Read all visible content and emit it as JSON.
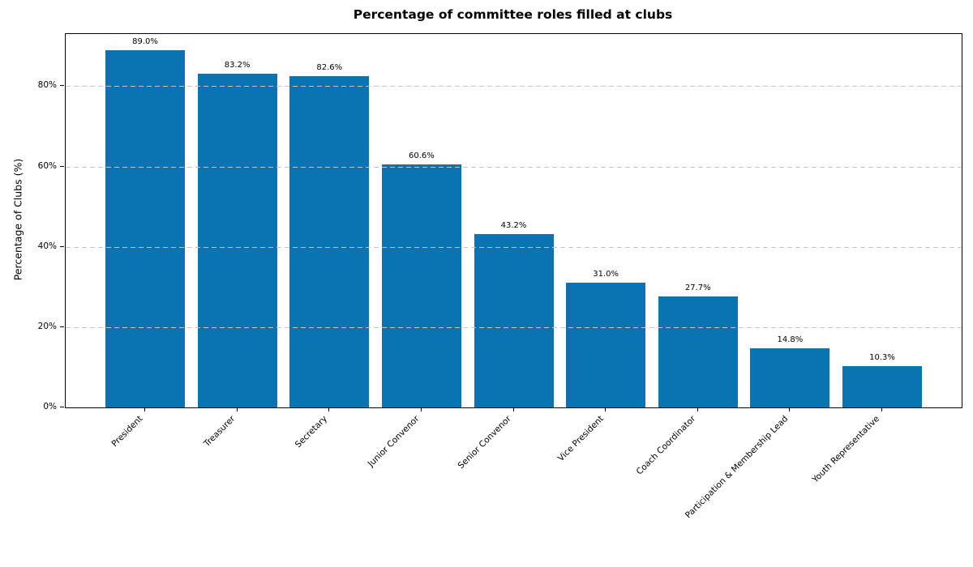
{
  "chart_data": {
    "type": "bar",
    "title": "Percentage of committee roles filled at clubs",
    "xlabel": "",
    "ylabel": "Percentage of Clubs (%)",
    "categories": [
      "President",
      "Treasurer",
      "Secretary",
      "Junior Convenor",
      "Senior Convenor",
      "Vice President",
      "Coach Coordinator",
      "Participation & Membership Lead",
      "Youth Representative"
    ],
    "values": [
      89.0,
      83.2,
      82.6,
      60.6,
      43.2,
      31.0,
      27.7,
      14.8,
      10.3
    ],
    "value_labels": [
      "89.0%",
      "83.2%",
      "82.6%",
      "60.6%",
      "43.2%",
      "31.0%",
      "27.7%",
      "14.8%",
      "10.3%"
    ],
    "yticks": [
      {
        "value": 0,
        "label": "0%"
      },
      {
        "value": 20,
        "label": "20%"
      },
      {
        "value": 40,
        "label": "40%"
      },
      {
        "value": 60,
        "label": "60%"
      },
      {
        "value": 80,
        "label": "80%"
      }
    ],
    "ylim": [
      0,
      93
    ],
    "grid": "horizontal dashed, drawn above bars",
    "legend": "none",
    "bar_color": "#0b73b1",
    "grid_color": "#c6c6c6",
    "x_tick_rotation_deg": 45
  }
}
